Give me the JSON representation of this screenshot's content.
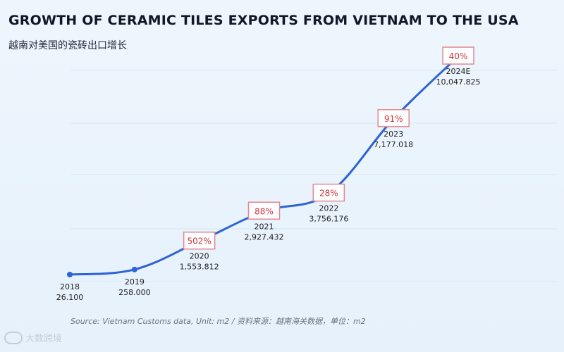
{
  "chart_data": {
    "type": "line",
    "title": "GROWTH OF CERAMIC TILES EXPORTS FROM VIETNAM TO THE USA",
    "subtitle": "越南对美国的瓷砖出口增长",
    "categories": [
      "2018",
      "2019",
      "2020",
      "2021",
      "2022",
      "2023",
      "2024E"
    ],
    "values": [
      26.1,
      258.0,
      1553.812,
      2927.432,
      3756.176,
      7177.018,
      10047.825
    ],
    "value_labels": [
      "26.100",
      "258.000",
      "1,553.812",
      "2,927.432",
      "3,756.176",
      "7,177.018",
      "10,047.825"
    ],
    "growth_labels": [
      "",
      "",
      "502%",
      "88%",
      "28%",
      "91%",
      "40%"
    ],
    "source": "Source: Vietnam Customs data, Unit: m2 / 资料来源：越南海关数据，单位：m2",
    "xlabel": "",
    "ylabel": "",
    "series_color": "#2d63d6",
    "growth_color": "#d0343c",
    "grid": true
  },
  "watermark": "大数跨境"
}
